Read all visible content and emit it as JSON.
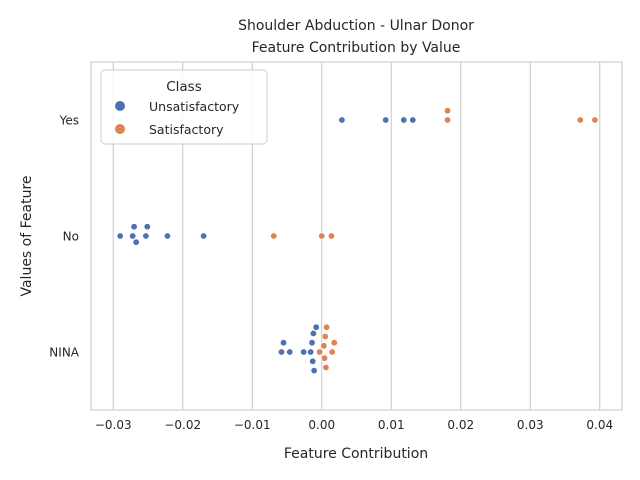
{
  "chart_data": {
    "type": "scatter",
    "title_lines": [
      "Shoulder Abduction - Ulnar Donor",
      "Feature Contribution by Value"
    ],
    "xlabel": "Feature Contribution",
    "ylabel": "Values of Feature",
    "xlim": [
      -0.0332,
      0.0432
    ],
    "x_ticks": [
      -0.03,
      -0.02,
      -0.01,
      0.0,
      0.01,
      0.02,
      0.03,
      0.04
    ],
    "x_tick_labels": [
      "−0.03",
      "−0.02",
      "−0.01",
      "0.00",
      "0.01",
      "0.02",
      "0.03",
      "0.04"
    ],
    "categories": [
      "Yes",
      "No",
      "NINA"
    ],
    "grid": "vertical",
    "legend": {
      "title": "Class",
      "placement": "upper-left"
    },
    "series": [
      {
        "name": "Unsatisfactory",
        "color": "#4c72b0",
        "points": [
          {
            "category": "Yes",
            "x": 0.0029
          },
          {
            "category": "Yes",
            "x": 0.0092
          },
          {
            "category": "Yes",
            "x": 0.0118
          },
          {
            "category": "Yes",
            "x": 0.0131
          },
          {
            "category": "No",
            "x": -0.029
          },
          {
            "category": "No",
            "x": -0.0272
          },
          {
            "category": "No",
            "x": -0.027
          },
          {
            "category": "No",
            "x": -0.0267
          },
          {
            "category": "No",
            "x": -0.0253
          },
          {
            "category": "No",
            "x": -0.0251
          },
          {
            "category": "No",
            "x": -0.0222
          },
          {
            "category": "No",
            "x": -0.017
          },
          {
            "category": "NINA",
            "x": -0.0058
          },
          {
            "category": "NINA",
            "x": -0.0055
          },
          {
            "category": "NINA",
            "x": -0.0046
          },
          {
            "category": "NINA",
            "x": -0.0026
          },
          {
            "category": "NINA",
            "x": -0.0016
          },
          {
            "category": "NINA",
            "x": -0.0014
          },
          {
            "category": "NINA",
            "x": -0.0013
          },
          {
            "category": "NINA",
            "x": -0.0012
          },
          {
            "category": "NINA",
            "x": -0.0011
          },
          {
            "category": "NINA",
            "x": -0.0008
          }
        ]
      },
      {
        "name": "Satisfactory",
        "color": "#dd8452",
        "points": [
          {
            "category": "Yes",
            "x": 0.0181
          },
          {
            "category": "Yes",
            "x": 0.0181
          },
          {
            "category": "Yes",
            "x": 0.0372
          },
          {
            "category": "Yes",
            "x": 0.0393
          },
          {
            "category": "No",
            "x": -0.0069
          },
          {
            "category": "No",
            "x": 0.0
          },
          {
            "category": "No",
            "x": 0.0014
          },
          {
            "category": "NINA",
            "x": -0.0003
          },
          {
            "category": "NINA",
            "x": 0.0003
          },
          {
            "category": "NINA",
            "x": 0.0004
          },
          {
            "category": "NINA",
            "x": 0.0005
          },
          {
            "category": "NINA",
            "x": 0.0006
          },
          {
            "category": "NINA",
            "x": 0.0007
          },
          {
            "category": "NINA",
            "x": 0.0015
          },
          {
            "category": "NINA",
            "x": 0.0018
          }
        ]
      }
    ]
  }
}
